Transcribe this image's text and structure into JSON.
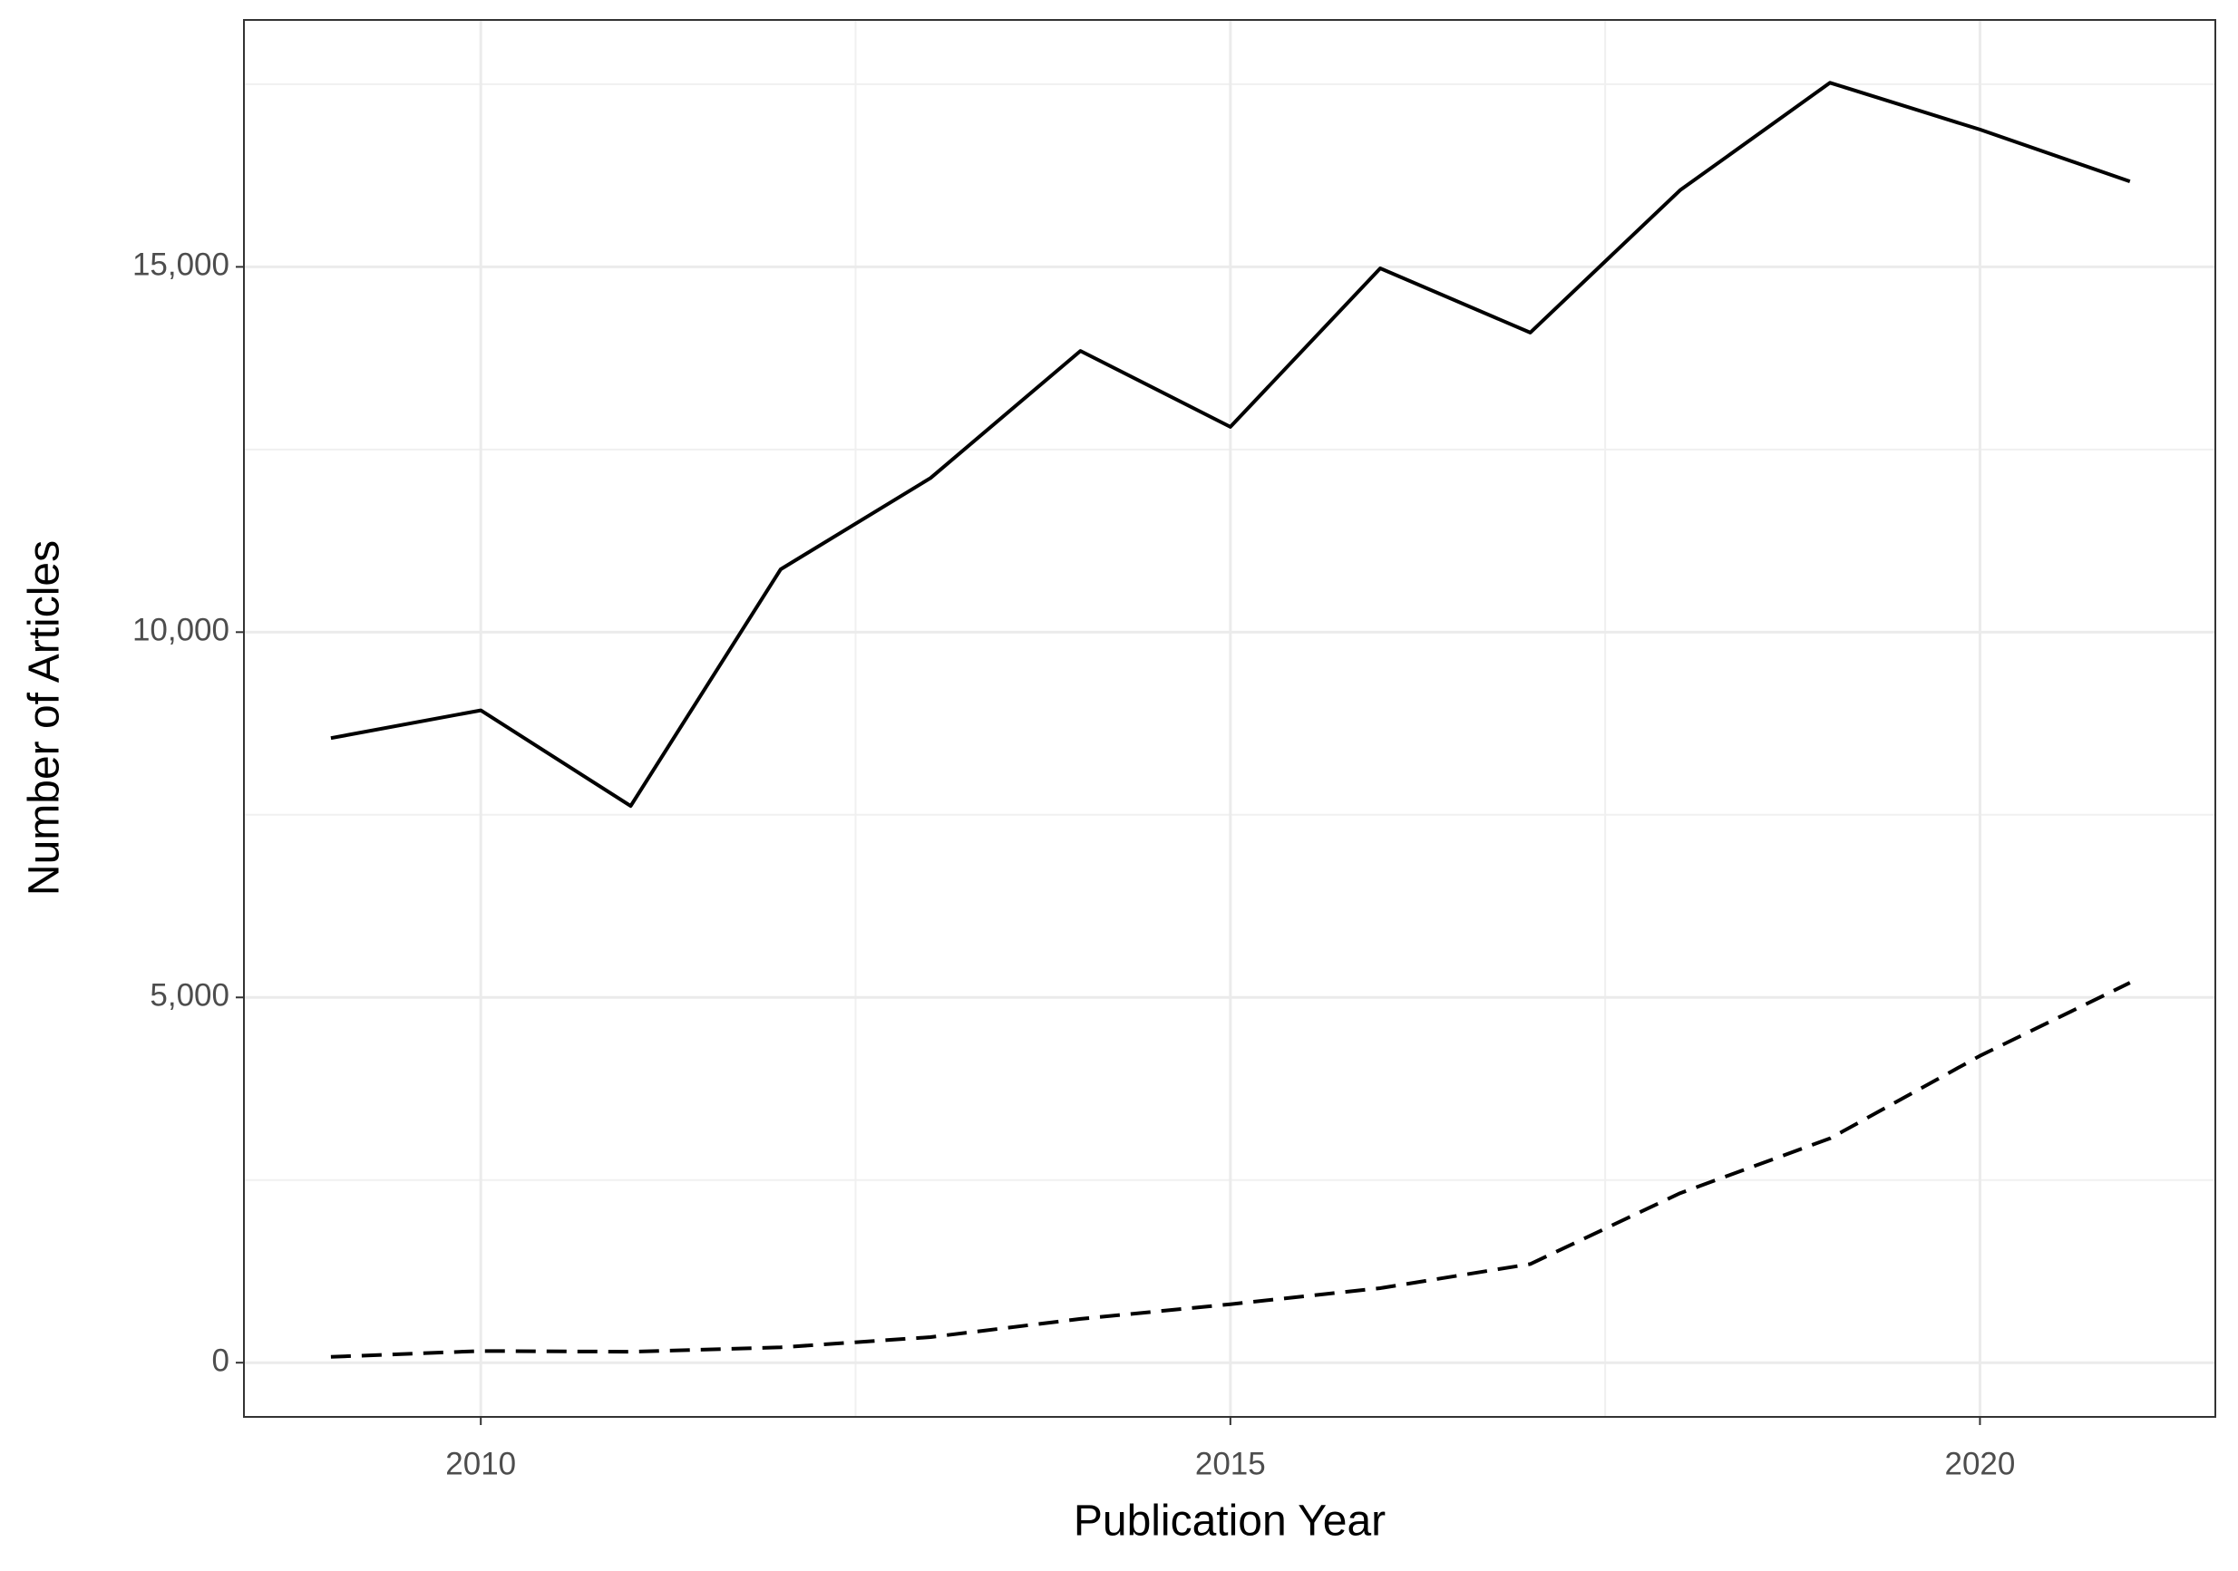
{
  "chart_data": {
    "type": "line",
    "x_label": "Publication Year",
    "y_label": "Number of Articles",
    "x": [
      2009,
      2010,
      2011,
      2012,
      2013,
      2014,
      2015,
      2016,
      2017,
      2018,
      2019,
      2020,
      2021
    ],
    "series": [
      {
        "color": "#000000",
        "dash": "solid",
        "values": [
          8550,
          8930,
          7620,
          10860,
          12110,
          13850,
          12810,
          14980,
          14100,
          16050,
          17520,
          16880,
          16170
        ]
      },
      {
        "color": "#000000",
        "dash": "dashed",
        "values": [
          80,
          160,
          150,
          210,
          350,
          600,
          800,
          1020,
          1350,
          2320,
          3070,
          4200,
          5200
        ]
      }
    ],
    "xlim": [
      2008.42,
      2021.57
    ],
    "xticks": [
      2010,
      2015,
      2020
    ],
    "xminorticks": [
      2012.5,
      2017.5
    ],
    "ylim": [
      -742,
      18380
    ],
    "yticks": [
      0,
      {
        "value": 5000,
        "label": "5,000"
      },
      {
        "value": 10000,
        "label": "10,000"
      },
      {
        "value": 15000,
        "label": "15,000"
      }
    ],
    "yminorticks": [
      2500,
      7500,
      12500,
      17500
    ],
    "grid": true
  }
}
